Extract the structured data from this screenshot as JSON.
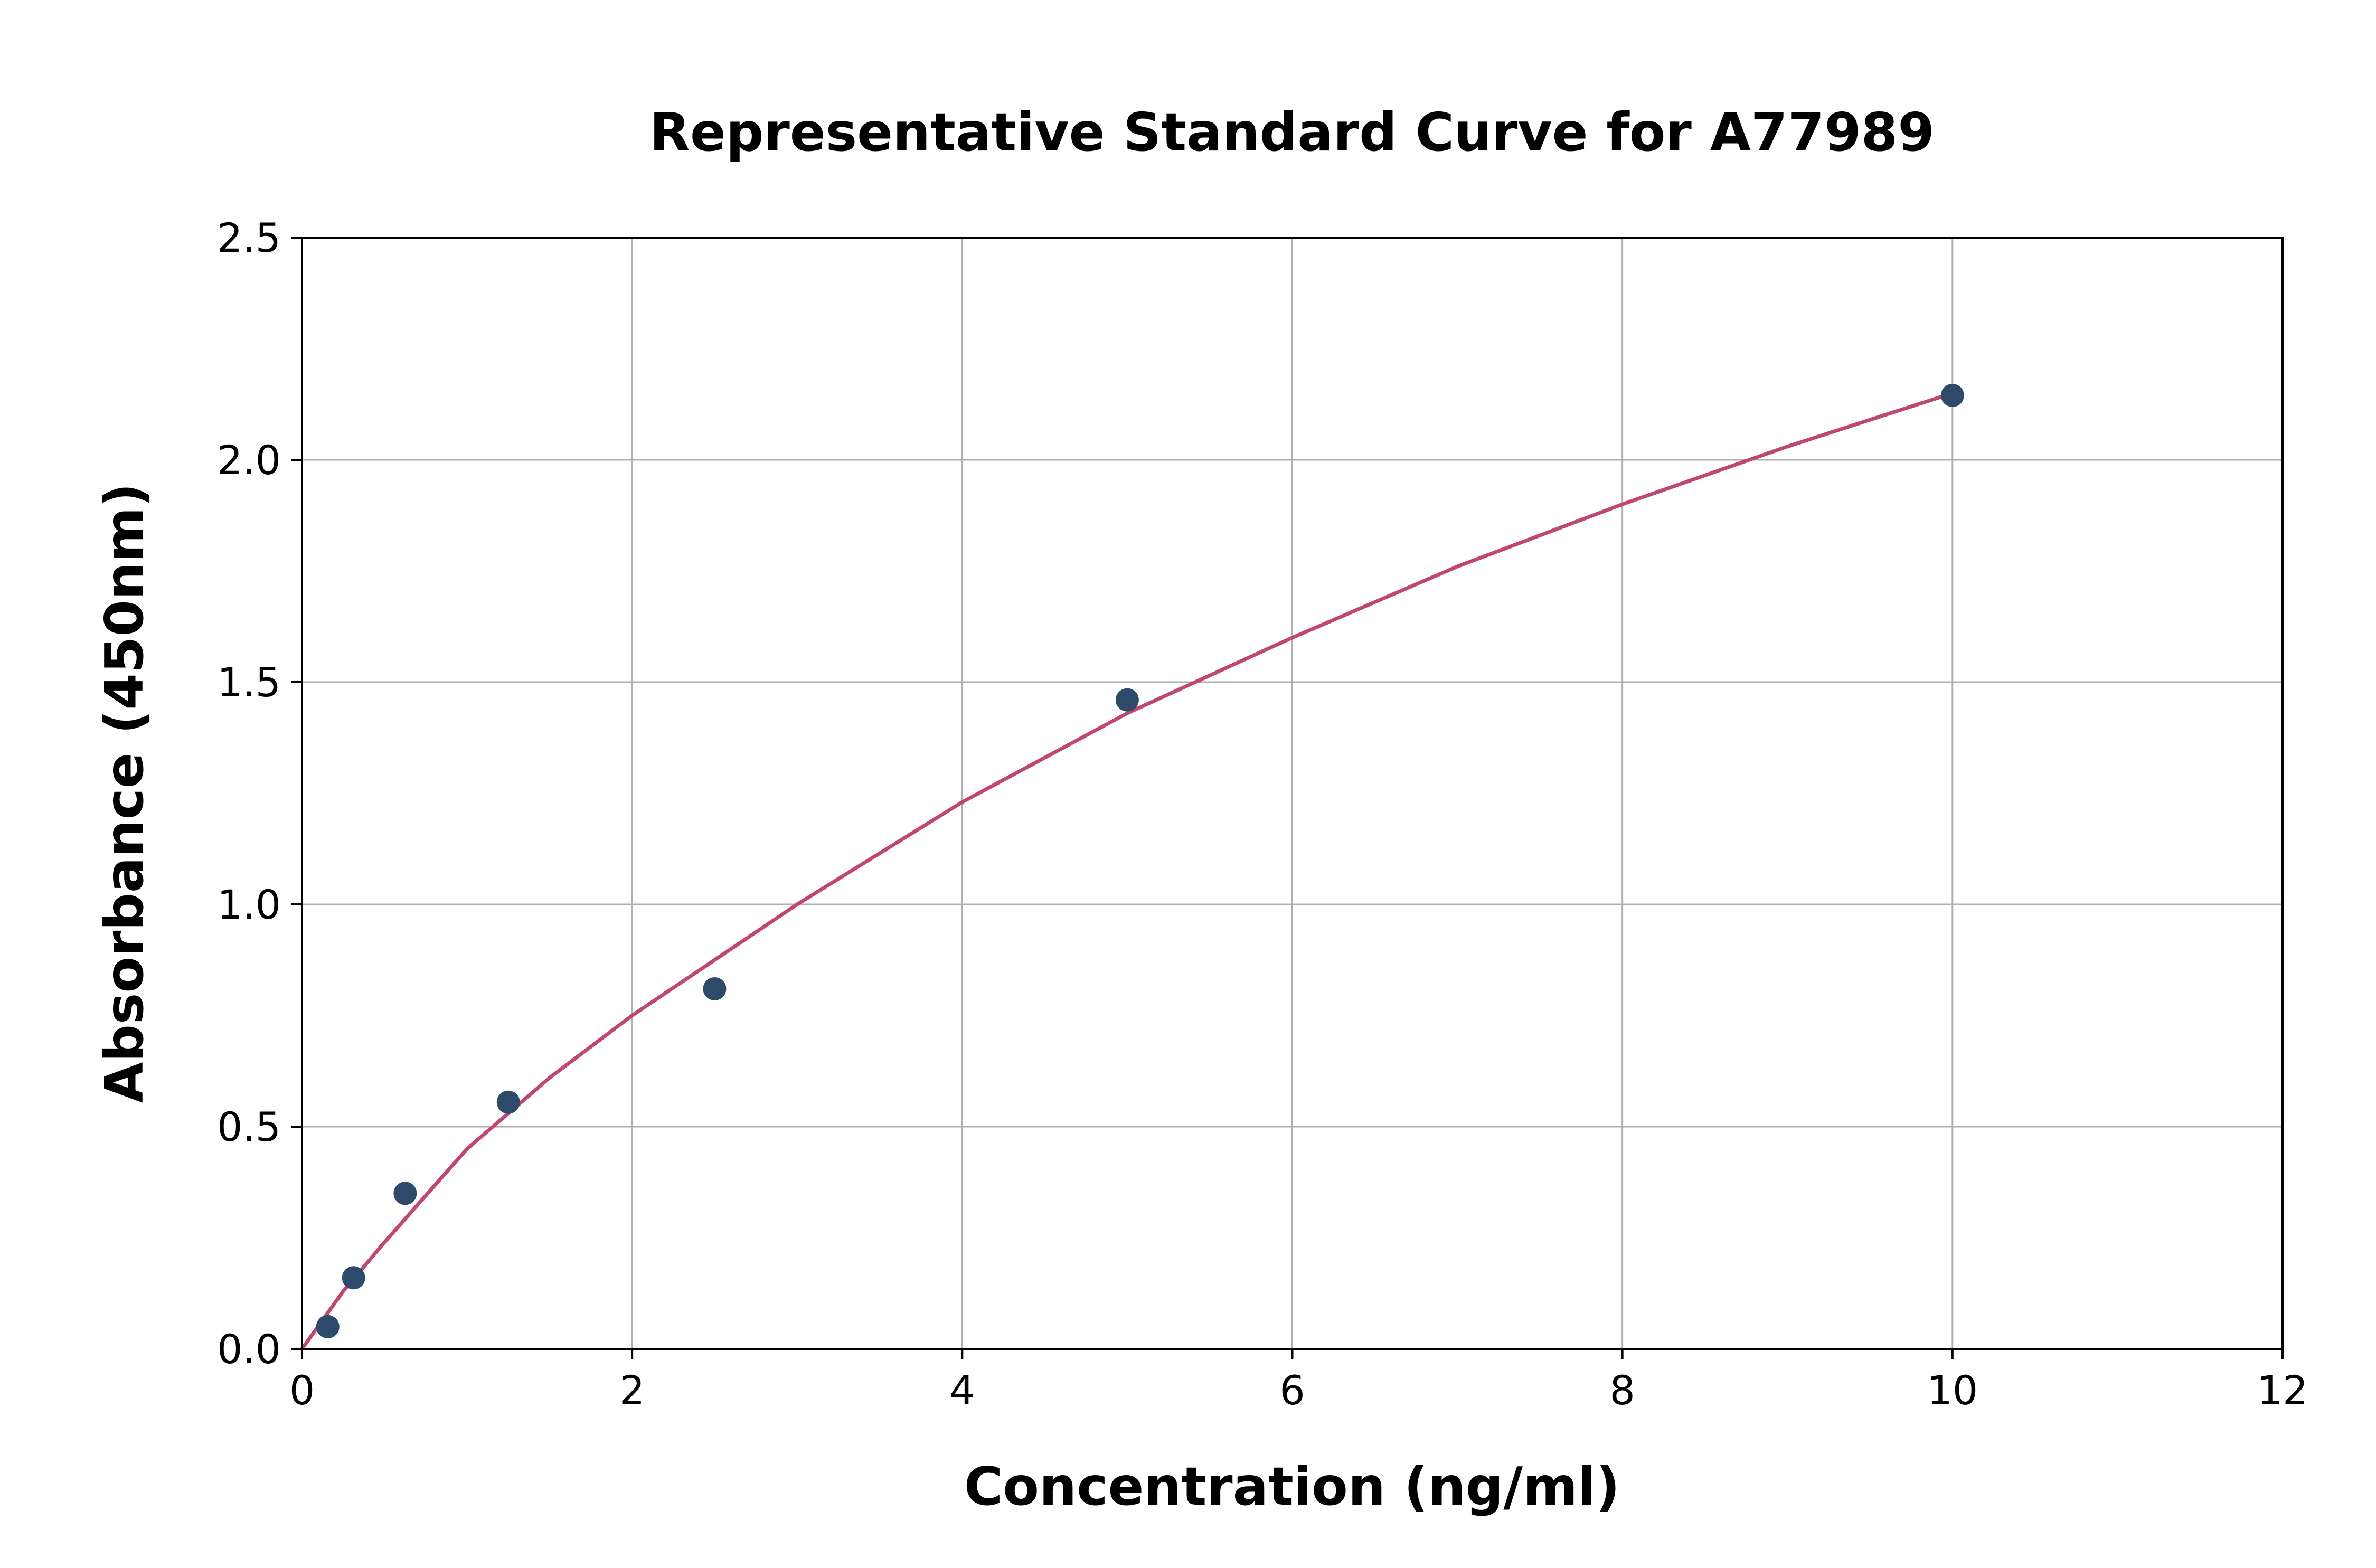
{
  "chart_data": {
    "type": "scatter",
    "title": "Representative Standard Curve for A77989",
    "xlabel": "Concentration (ng/ml)",
    "ylabel": "Absorbance (450nm)",
    "xlim": [
      0,
      12
    ],
    "ylim": [
      0,
      2.5
    ],
    "xticks": [
      "0",
      "2",
      "4",
      "6",
      "8",
      "10",
      "12"
    ],
    "yticks": [
      "0.0",
      "0.5",
      "1.0",
      "1.5",
      "2.0",
      "2.5"
    ],
    "grid": true,
    "series": [
      {
        "type": "scatter",
        "color": "#2e4a6b",
        "x": [
          0.156,
          0.3125,
          0.625,
          1.25,
          2.5,
          5,
          10
        ],
        "y": [
          0.05,
          0.16,
          0.35,
          0.555,
          0.81,
          1.46,
          2.145
        ]
      },
      {
        "type": "line",
        "color": "#c0486e",
        "x": [
          0,
          0.25,
          0.5,
          1,
          1.5,
          2,
          3,
          4,
          5,
          6,
          7,
          8,
          9,
          10
        ],
        "y": [
          0,
          0.13,
          0.24,
          0.45,
          0.61,
          0.75,
          1.0,
          1.23,
          1.43,
          1.6,
          1.76,
          1.9,
          2.03,
          2.15
        ]
      }
    ]
  }
}
